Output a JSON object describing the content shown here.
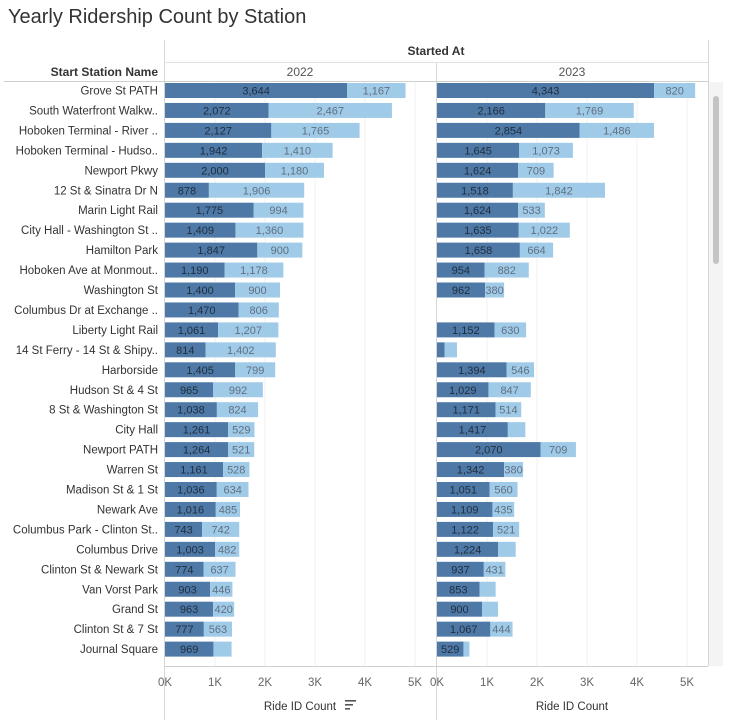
{
  "chart_data": {
    "type": "bar",
    "title": "Yearly Ridership Count by Station",
    "column_header": "Started At",
    "row_header": "Start Station Name",
    "panels": [
      "2022",
      "2023"
    ],
    "x_axis_title": "Ride ID Count",
    "x_ticks": [
      "0K",
      "1K",
      "2K",
      "3K",
      "4K",
      "5K"
    ],
    "xlim": [
      0,
      5400
    ],
    "colors": {
      "dark": "#4e79a7",
      "light": "#a0cbe8",
      "dark_label": "#1f2d3d",
      "light_label": "#5f6f80"
    },
    "stations": [
      {
        "name": "Grove St PATH",
        "y2022": [
          3644,
          1167
        ],
        "y2023": [
          4343,
          820
        ]
      },
      {
        "name": "South Waterfront Walkw..",
        "y2022": [
          2072,
          2467
        ],
        "y2023": [
          2166,
          1769
        ]
      },
      {
        "name": "Hoboken Terminal - River ..",
        "y2022": [
          2127,
          1765
        ],
        "y2023": [
          2854,
          1486
        ]
      },
      {
        "name": "Hoboken Terminal - Hudso..",
        "y2022": [
          1942,
          1410
        ],
        "y2023": [
          1645,
          1073
        ]
      },
      {
        "name": "Newport Pkwy",
        "y2022": [
          2000,
          1180
        ],
        "y2023": [
          1624,
          709
        ]
      },
      {
        "name": "12 St & Sinatra Dr N",
        "y2022": [
          878,
          1906
        ],
        "y2023": [
          1518,
          1842
        ]
      },
      {
        "name": "Marin Light Rail",
        "y2022": [
          1775,
          994
        ],
        "y2023": [
          1624,
          533
        ]
      },
      {
        "name": "City Hall - Washington St ..",
        "y2022": [
          1409,
          1360
        ],
        "y2023": [
          1635,
          1022
        ]
      },
      {
        "name": "Hamilton Park",
        "y2022": [
          1847,
          900
        ],
        "y2023": [
          1658,
          664
        ]
      },
      {
        "name": "Hoboken Ave at Monmout..",
        "y2022": [
          1190,
          1178
        ],
        "y2023": [
          954,
          882
        ]
      },
      {
        "name": "Washington St",
        "y2022": [
          1400,
          900
        ],
        "y2023": [
          962,
          380
        ]
      },
      {
        "name": "Columbus Dr at Exchange ..",
        "y2022": [
          1470,
          806
        ],
        "y2023": [
          0,
          0
        ]
      },
      {
        "name": "Liberty Light Rail",
        "y2022": [
          1061,
          1207
        ],
        "y2023": [
          1152,
          630
        ]
      },
      {
        "name": "14 St Ferry - 14 St & Shipy..",
        "y2022": [
          814,
          1402
        ],
        "y2023": [
          150,
          250
        ]
      },
      {
        "name": "Harborside",
        "y2022": [
          1405,
          799
        ],
        "y2023": [
          1394,
          546
        ]
      },
      {
        "name": "Hudson St & 4 St",
        "y2022": [
          965,
          992
        ],
        "y2023": [
          1029,
          847
        ]
      },
      {
        "name": "8 St & Washington St",
        "y2022": [
          1038,
          824
        ],
        "y2023": [
          1171,
          514
        ]
      },
      {
        "name": "City Hall",
        "y2022": [
          1261,
          529
        ],
        "y2023": [
          1417,
          350
        ]
      },
      {
        "name": "Newport PATH",
        "y2022": [
          1264,
          521
        ],
        "y2023": [
          2070,
          709
        ]
      },
      {
        "name": "Warren St",
        "y2022": [
          1161,
          528
        ],
        "y2023": [
          1342,
          380
        ]
      },
      {
        "name": "Madison St & 1 St",
        "y2022": [
          1036,
          634
        ],
        "y2023": [
          1051,
          560
        ]
      },
      {
        "name": "Newark Ave",
        "y2022": [
          1016,
          485
        ],
        "y2023": [
          1109,
          435
        ]
      },
      {
        "name": "Columbus Park - Clinton St..",
        "y2022": [
          743,
          742
        ],
        "y2023": [
          1122,
          521
        ]
      },
      {
        "name": "Columbus Drive",
        "y2022": [
          1003,
          482
        ],
        "y2023": [
          1224,
          350
        ]
      },
      {
        "name": "Clinton St & Newark St",
        "y2022": [
          774,
          637
        ],
        "y2023": [
          937,
          431
        ]
      },
      {
        "name": "Van Vorst Park",
        "y2022": [
          903,
          446
        ],
        "y2023": [
          853,
          320
        ]
      },
      {
        "name": "Grand St",
        "y2022": [
          963,
          420
        ],
        "y2023": [
          900,
          320
        ]
      },
      {
        "name": "Clinton St & 7 St",
        "y2022": [
          777,
          563
        ],
        "y2023": [
          1067,
          444
        ]
      },
      {
        "name": "Journal Square",
        "y2022": [
          969,
          363
        ],
        "y2023": [
          529,
          120
        ]
      }
    ]
  }
}
